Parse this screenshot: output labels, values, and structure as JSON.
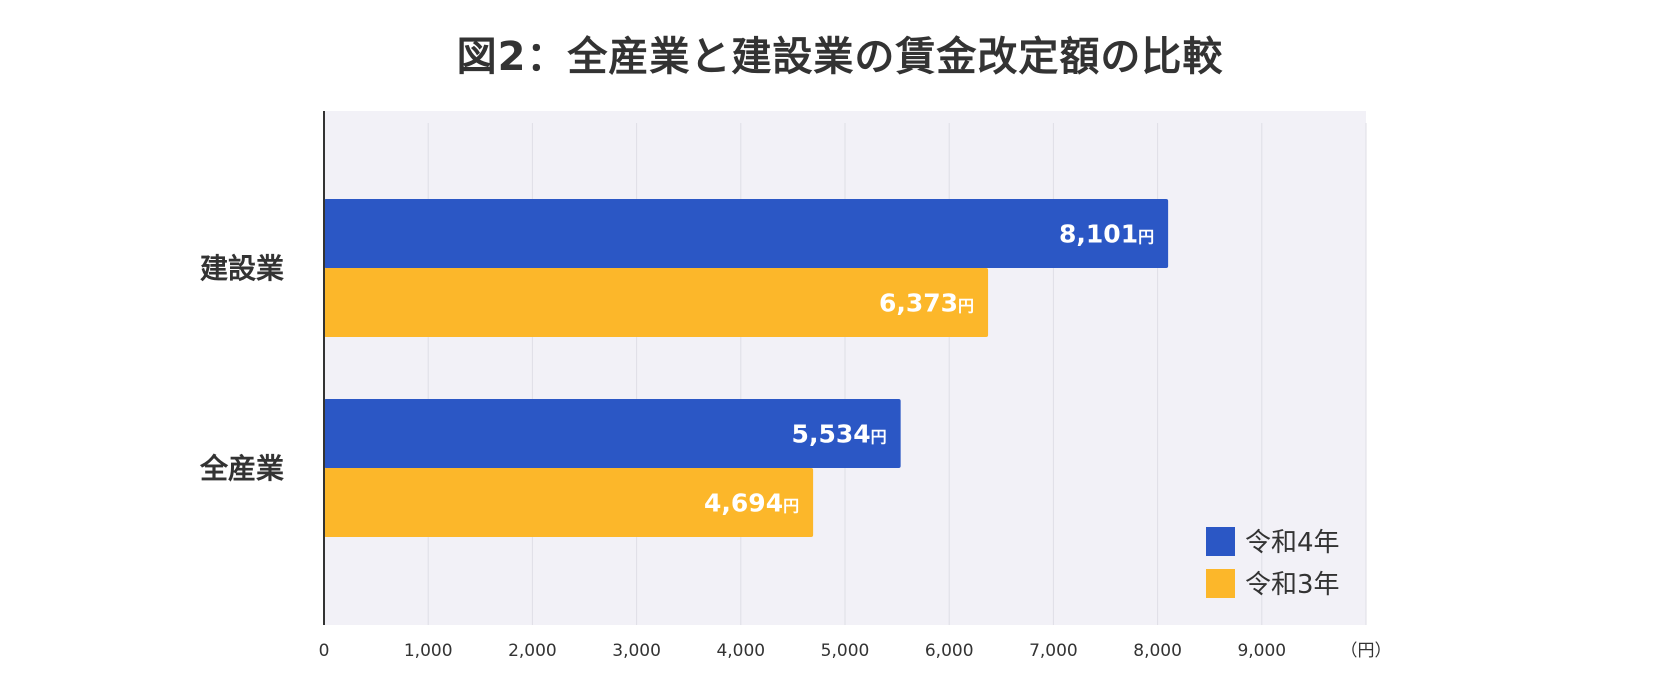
{
  "chart_data": {
    "type": "bar",
    "orientation": "horizontal",
    "title": "図2：全産業と建設業の賃金改定額の比較",
    "categories": [
      "建設業",
      "全産業"
    ],
    "series": [
      {
        "name": "令和4年",
        "color": "#2b57c5",
        "values": [
          8101,
          5534
        ],
        "labels": [
          "8,101",
          "5,534"
        ]
      },
      {
        "name": "令和3年",
        "color": "#fcb72a",
        "values": [
          6373,
          4694
        ],
        "labels": [
          "6,373",
          "4,694"
        ]
      }
    ],
    "value_unit": "円",
    "x_unit_label": "（円）",
    "xlim": [
      0,
      10000
    ],
    "xticks": [
      0,
      1000,
      2000,
      3000,
      4000,
      5000,
      6000,
      7000,
      8000,
      9000
    ],
    "xtick_labels": [
      "0",
      "1,000",
      "2,000",
      "3,000",
      "4,000",
      "5,000",
      "6,000",
      "7,000",
      "8,000",
      "9,000"
    ],
    "grid": true,
    "legend_position": "bottom-right",
    "plot_background": "#f2f1f7"
  }
}
